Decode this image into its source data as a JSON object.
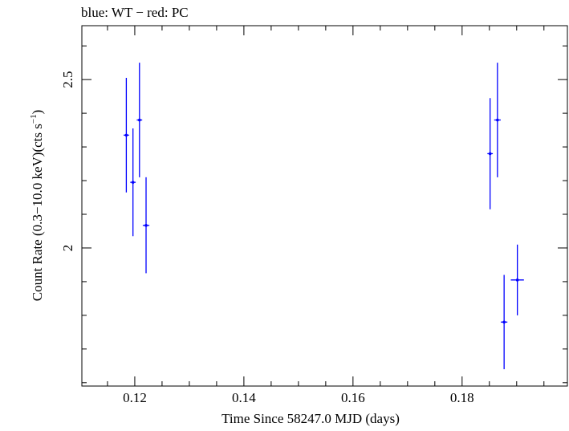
{
  "chart_data": {
    "type": "scatter",
    "title": "blue: WT − red: PC",
    "xlabel": "Time Since 58247.0 MJD (days)",
    "ylabel_main": "Count Rate (0.3−10.0 keV)(cts s",
    "ylabel_sup": "−1",
    "ylabel_close": ")",
    "xlim": [
      0.1103,
      0.1993
    ],
    "ylim": [
      1.59,
      2.66
    ],
    "x_ticks": [
      {
        "value": 0.12,
        "label": "0.12"
      },
      {
        "value": 0.14,
        "label": "0.14"
      },
      {
        "value": 0.16,
        "label": "0.16"
      },
      {
        "value": 0.18,
        "label": "0.18"
      }
    ],
    "y_ticks": [
      {
        "value": 2.0,
        "label": "2"
      },
      {
        "value": 2.5,
        "label": "2.5"
      }
    ],
    "y_minor_step": 0.1,
    "x_minor_step": 0.005,
    "series": [
      {
        "name": "WT",
        "color": "#0000ff",
        "points": [
          {
            "x": 0.11845,
            "y": 2.335,
            "xerr": 0.0005,
            "ylo": 2.165,
            "yhi": 2.505
          },
          {
            "x": 0.11967,
            "y": 2.195,
            "xerr": 0.0005,
            "ylo": 2.035,
            "yhi": 2.355
          },
          {
            "x": 0.12086,
            "y": 2.38,
            "xerr": 0.0005,
            "ylo": 2.21,
            "yhi": 2.55
          },
          {
            "x": 0.12207,
            "y": 2.067,
            "xerr": 0.0006,
            "ylo": 1.925,
            "yhi": 2.21
          },
          {
            "x": 0.18513,
            "y": 2.28,
            "xerr": 0.0005,
            "ylo": 2.115,
            "yhi": 2.445
          },
          {
            "x": 0.18648,
            "y": 2.38,
            "xerr": 0.0006,
            "ylo": 2.21,
            "yhi": 2.55
          },
          {
            "x": 0.1877,
            "y": 1.78,
            "xerr": 0.0006,
            "ylo": 1.64,
            "yhi": 1.92
          },
          {
            "x": 0.19013,
            "y": 1.905,
            "xerr": 0.0012,
            "ylo": 1.8,
            "yhi": 2.01
          }
        ]
      }
    ]
  }
}
